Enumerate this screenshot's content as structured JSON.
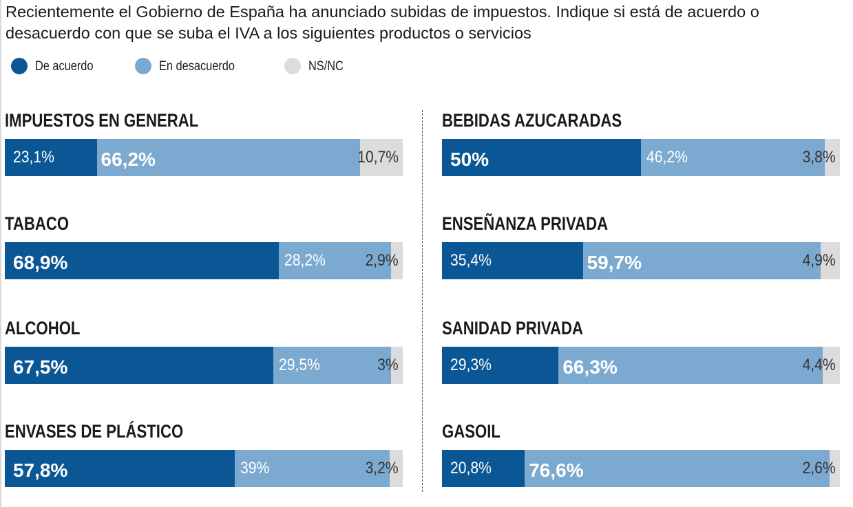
{
  "title": "Recientemente el Gobierno de España ha anunciado subidas de impuestos. Indique si está de acuerdo o desacuerdo con que se suba el IVA a los siguientes productos o servicios",
  "legend": [
    {
      "label": "De acuerdo",
      "color": "#0b5796"
    },
    {
      "label": "En desacuerdo",
      "color": "#7ca9d0"
    },
    {
      "label": "NS/NC",
      "color": "#dcdcdc"
    }
  ],
  "chart_data": {
    "type": "bar",
    "orientation": "horizontal-stacked-100",
    "series": [
      "De acuerdo",
      "En desacuerdo",
      "NS/NC"
    ],
    "panels": [
      {
        "title": "IMPUESTOS EN GENERAL",
        "values": [
          23.1,
          66.2,
          10.7
        ],
        "labels": [
          "23,1%",
          "66,2%",
          "10,7%"
        ],
        "emphasis": 1
      },
      {
        "title": "TABACO",
        "values": [
          68.9,
          28.2,
          2.9
        ],
        "labels": [
          "68,9%",
          "28,2%",
          "2,9%"
        ],
        "emphasis": 0
      },
      {
        "title": "ALCOHOL",
        "values": [
          67.5,
          29.5,
          3
        ],
        "labels": [
          "67,5%",
          "29,5%",
          "3%"
        ],
        "emphasis": 0
      },
      {
        "title": "ENVASES DE PLÁSTICO",
        "values": [
          57.8,
          39,
          3.2
        ],
        "labels": [
          "57,8%",
          "39%",
          "3,2%"
        ],
        "emphasis": 0
      },
      {
        "title": "BEBIDAS AZUCARADAS",
        "values": [
          50,
          46.2,
          3.8
        ],
        "labels": [
          "50%",
          "46,2%",
          "3,8%"
        ],
        "emphasis": 0
      },
      {
        "title": "ENSEÑANZA PRIVADA",
        "values": [
          35.4,
          59.7,
          4.9
        ],
        "labels": [
          "35,4%",
          "59,7%",
          "4,9%"
        ],
        "emphasis": 1
      },
      {
        "title": "SANIDAD PRIVADA",
        "values": [
          29.3,
          66.3,
          4.4
        ],
        "labels": [
          "29,3%",
          "66,3%",
          "4,4%"
        ],
        "emphasis": 1
      },
      {
        "title": "GASOIL",
        "values": [
          20.8,
          76.6,
          2.6
        ],
        "labels": [
          "20,8%",
          "76,6%",
          "2,6%"
        ],
        "emphasis": 1
      }
    ]
  }
}
